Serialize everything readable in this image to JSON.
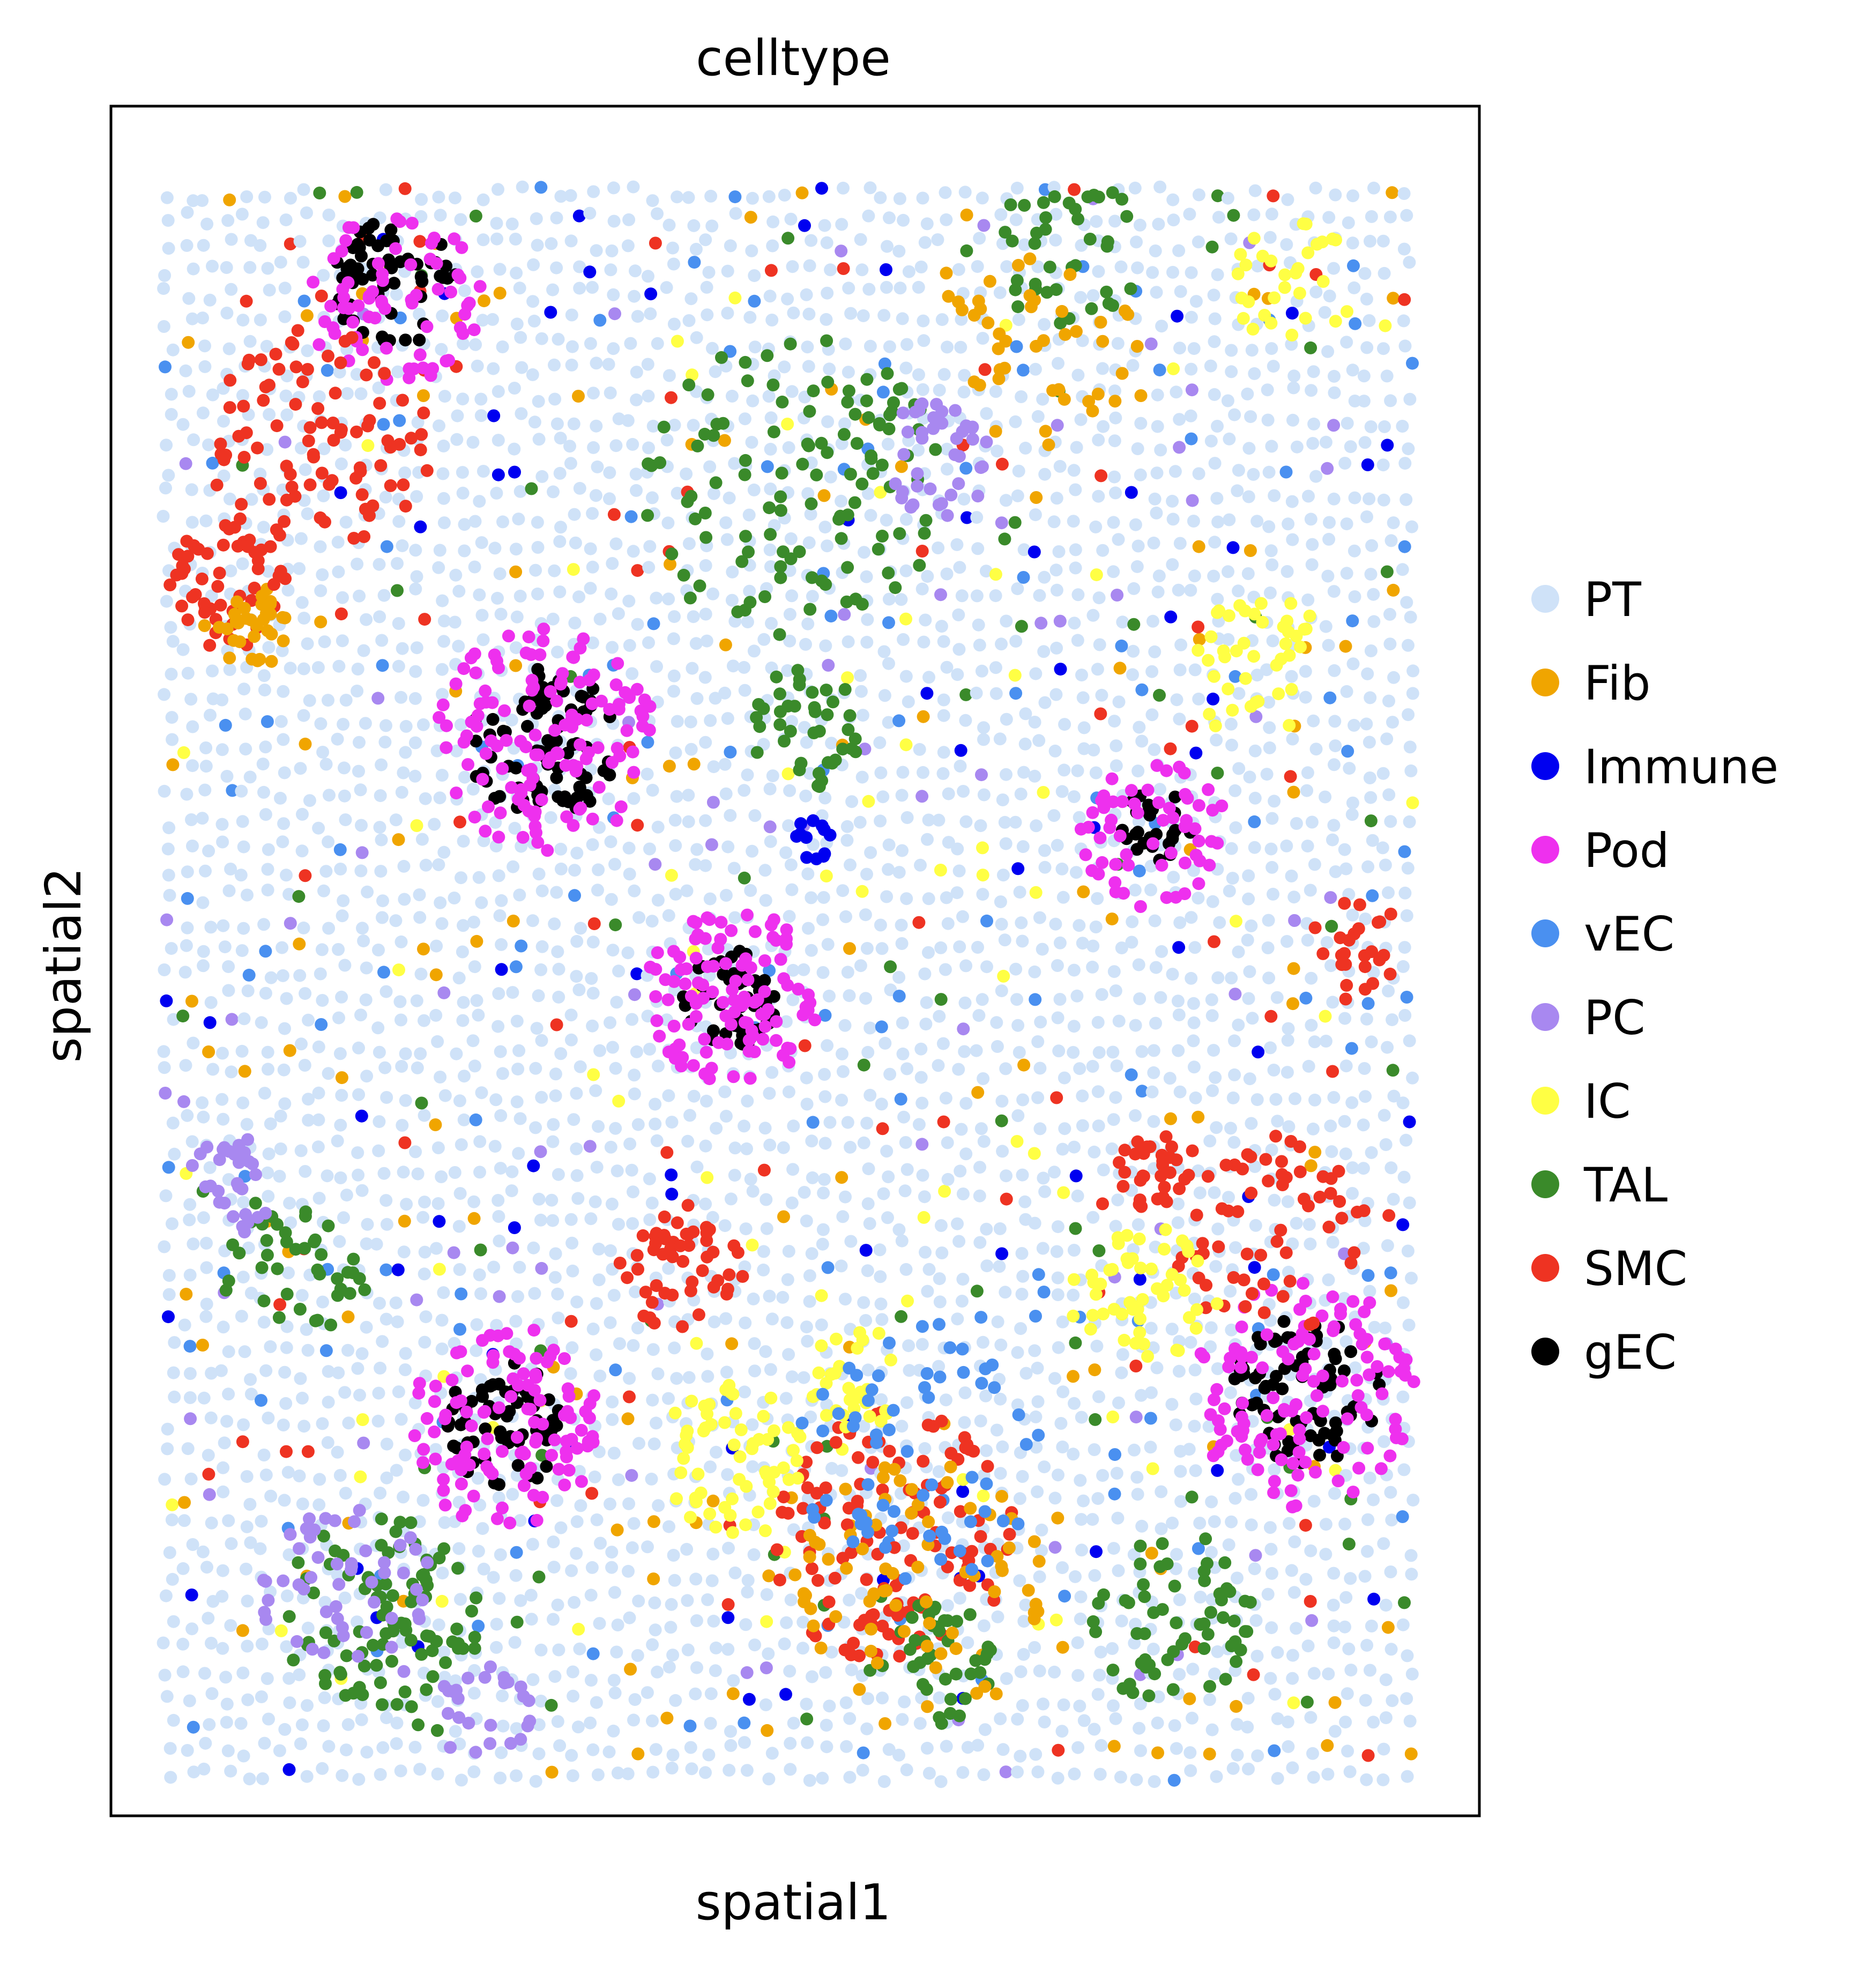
{
  "chart_data": {
    "type": "scatter",
    "title": "celltype",
    "xlabel": "spatial1",
    "ylabel": "spatial2",
    "xticks": [],
    "yticks": [],
    "xlim": [
      0,
      100
    ],
    "ylim": [
      0,
      100
    ],
    "grid": false,
    "legend_position": "right",
    "background_category": "PT",
    "categories": [
      {
        "name": "PT",
        "color": "#cfe2f8"
      },
      {
        "name": "Fib",
        "color": "#f0a500"
      },
      {
        "name": "Immune",
        "color": "#0000f0"
      },
      {
        "name": "Pod",
        "color": "#ee30ee"
      },
      {
        "name": "vEC",
        "color": "#4a90f0"
      },
      {
        "name": "PC",
        "color": "#a888f0"
      },
      {
        "name": "IC",
        "color": "#ffff44"
      },
      {
        "name": "TAL",
        "color": "#3a8a2a"
      },
      {
        "name": "SMC",
        "color": "#ee3322"
      },
      {
        "name": "gEC",
        "color": "#000000"
      }
    ],
    "clusters": [
      {
        "category": "gEC",
        "cx": 18,
        "cy": 94,
        "r": 5,
        "n": 60
      },
      {
        "category": "Pod",
        "cx": 18,
        "cy": 93,
        "r": 7,
        "n": 70
      },
      {
        "category": "gEC",
        "cx": 30,
        "cy": 65,
        "r": 6,
        "n": 80
      },
      {
        "category": "Pod",
        "cx": 30,
        "cy": 65,
        "r": 9,
        "n": 130
      },
      {
        "category": "gEC",
        "cx": 45,
        "cy": 49,
        "r": 4,
        "n": 50
      },
      {
        "category": "Pod",
        "cx": 45,
        "cy": 49,
        "r": 7,
        "n": 110
      },
      {
        "category": "gEC",
        "cx": 27,
        "cy": 22,
        "r": 5,
        "n": 60
      },
      {
        "category": "Pod",
        "cx": 27,
        "cy": 22,
        "r": 8,
        "n": 110
      },
      {
        "category": "gEC",
        "cx": 91,
        "cy": 24,
        "r": 6,
        "n": 80
      },
      {
        "category": "Pod",
        "cx": 91,
        "cy": 24,
        "r": 9,
        "n": 120
      },
      {
        "category": "gEC",
        "cx": 79,
        "cy": 60,
        "r": 3,
        "n": 25
      },
      {
        "category": "Pod",
        "cx": 79,
        "cy": 59,
        "r": 6,
        "n": 60
      },
      {
        "category": "SMC",
        "cx": 12,
        "cy": 84,
        "r": 9,
        "n": 90
      },
      {
        "category": "SMC",
        "cx": 5,
        "cy": 75,
        "r": 5,
        "n": 50
      },
      {
        "category": "SMC",
        "cx": 41,
        "cy": 32,
        "r": 5,
        "n": 50
      },
      {
        "category": "SMC",
        "cx": 58,
        "cy": 15,
        "r": 10,
        "n": 120
      },
      {
        "category": "SMC",
        "cx": 79,
        "cy": 38,
        "r": 3,
        "n": 30
      },
      {
        "category": "SMC",
        "cx": 88,
        "cy": 34,
        "r": 8,
        "n": 60
      },
      {
        "category": "SMC",
        "cx": 95,
        "cy": 52,
        "r": 4,
        "n": 25
      },
      {
        "category": "TAL",
        "cx": 50,
        "cy": 81,
        "r": 12,
        "n": 110
      },
      {
        "category": "TAL",
        "cx": 51,
        "cy": 66,
        "r": 5,
        "n": 40
      },
      {
        "category": "TAL",
        "cx": 72,
        "cy": 96,
        "r": 6,
        "n": 40
      },
      {
        "category": "TAL",
        "cx": 17,
        "cy": 10,
        "r": 8,
        "n": 90
      },
      {
        "category": "TAL",
        "cx": 61,
        "cy": 7,
        "r": 5,
        "n": 40
      },
      {
        "category": "TAL",
        "cx": 80,
        "cy": 10,
        "r": 7,
        "n": 60
      },
      {
        "category": "TAL",
        "cx": 10,
        "cy": 32,
        "r": 6,
        "n": 40
      },
      {
        "category": "IC",
        "cx": 45,
        "cy": 20,
        "r": 6,
        "n": 60
      },
      {
        "category": "IC",
        "cx": 55,
        "cy": 25,
        "r": 4,
        "n": 30
      },
      {
        "category": "IC",
        "cx": 78,
        "cy": 30,
        "r": 6,
        "n": 50
      },
      {
        "category": "IC",
        "cx": 87,
        "cy": 70,
        "r": 6,
        "n": 40
      },
      {
        "category": "IC",
        "cx": 90,
        "cy": 94,
        "r": 5,
        "n": 30
      },
      {
        "category": "PC",
        "cx": 14,
        "cy": 12,
        "r": 7,
        "n": 50
      },
      {
        "category": "PC",
        "cx": 5,
        "cy": 37,
        "r": 4,
        "n": 30
      },
      {
        "category": "PC",
        "cx": 62,
        "cy": 83,
        "r": 5,
        "n": 40
      },
      {
        "category": "PC",
        "cx": 25,
        "cy": 4,
        "r": 4,
        "n": 25
      },
      {
        "category": "Fib",
        "cx": 60,
        "cy": 12,
        "r": 10,
        "n": 70
      },
      {
        "category": "Fib",
        "cx": 7,
        "cy": 72,
        "r": 3,
        "n": 30
      },
      {
        "category": "Fib",
        "cx": 70,
        "cy": 90,
        "r": 8,
        "n": 40
      },
      {
        "category": "vEC",
        "cx": 60,
        "cy": 20,
        "r": 10,
        "n": 60
      },
      {
        "category": "Immune",
        "cx": 52,
        "cy": 59,
        "r": 2,
        "n": 12
      }
    ]
  },
  "legend": {
    "items": [
      "PT",
      "Fib",
      "Immune",
      "Pod",
      "vEC",
      "PC",
      "IC",
      "TAL",
      "SMC",
      "gEC"
    ]
  }
}
